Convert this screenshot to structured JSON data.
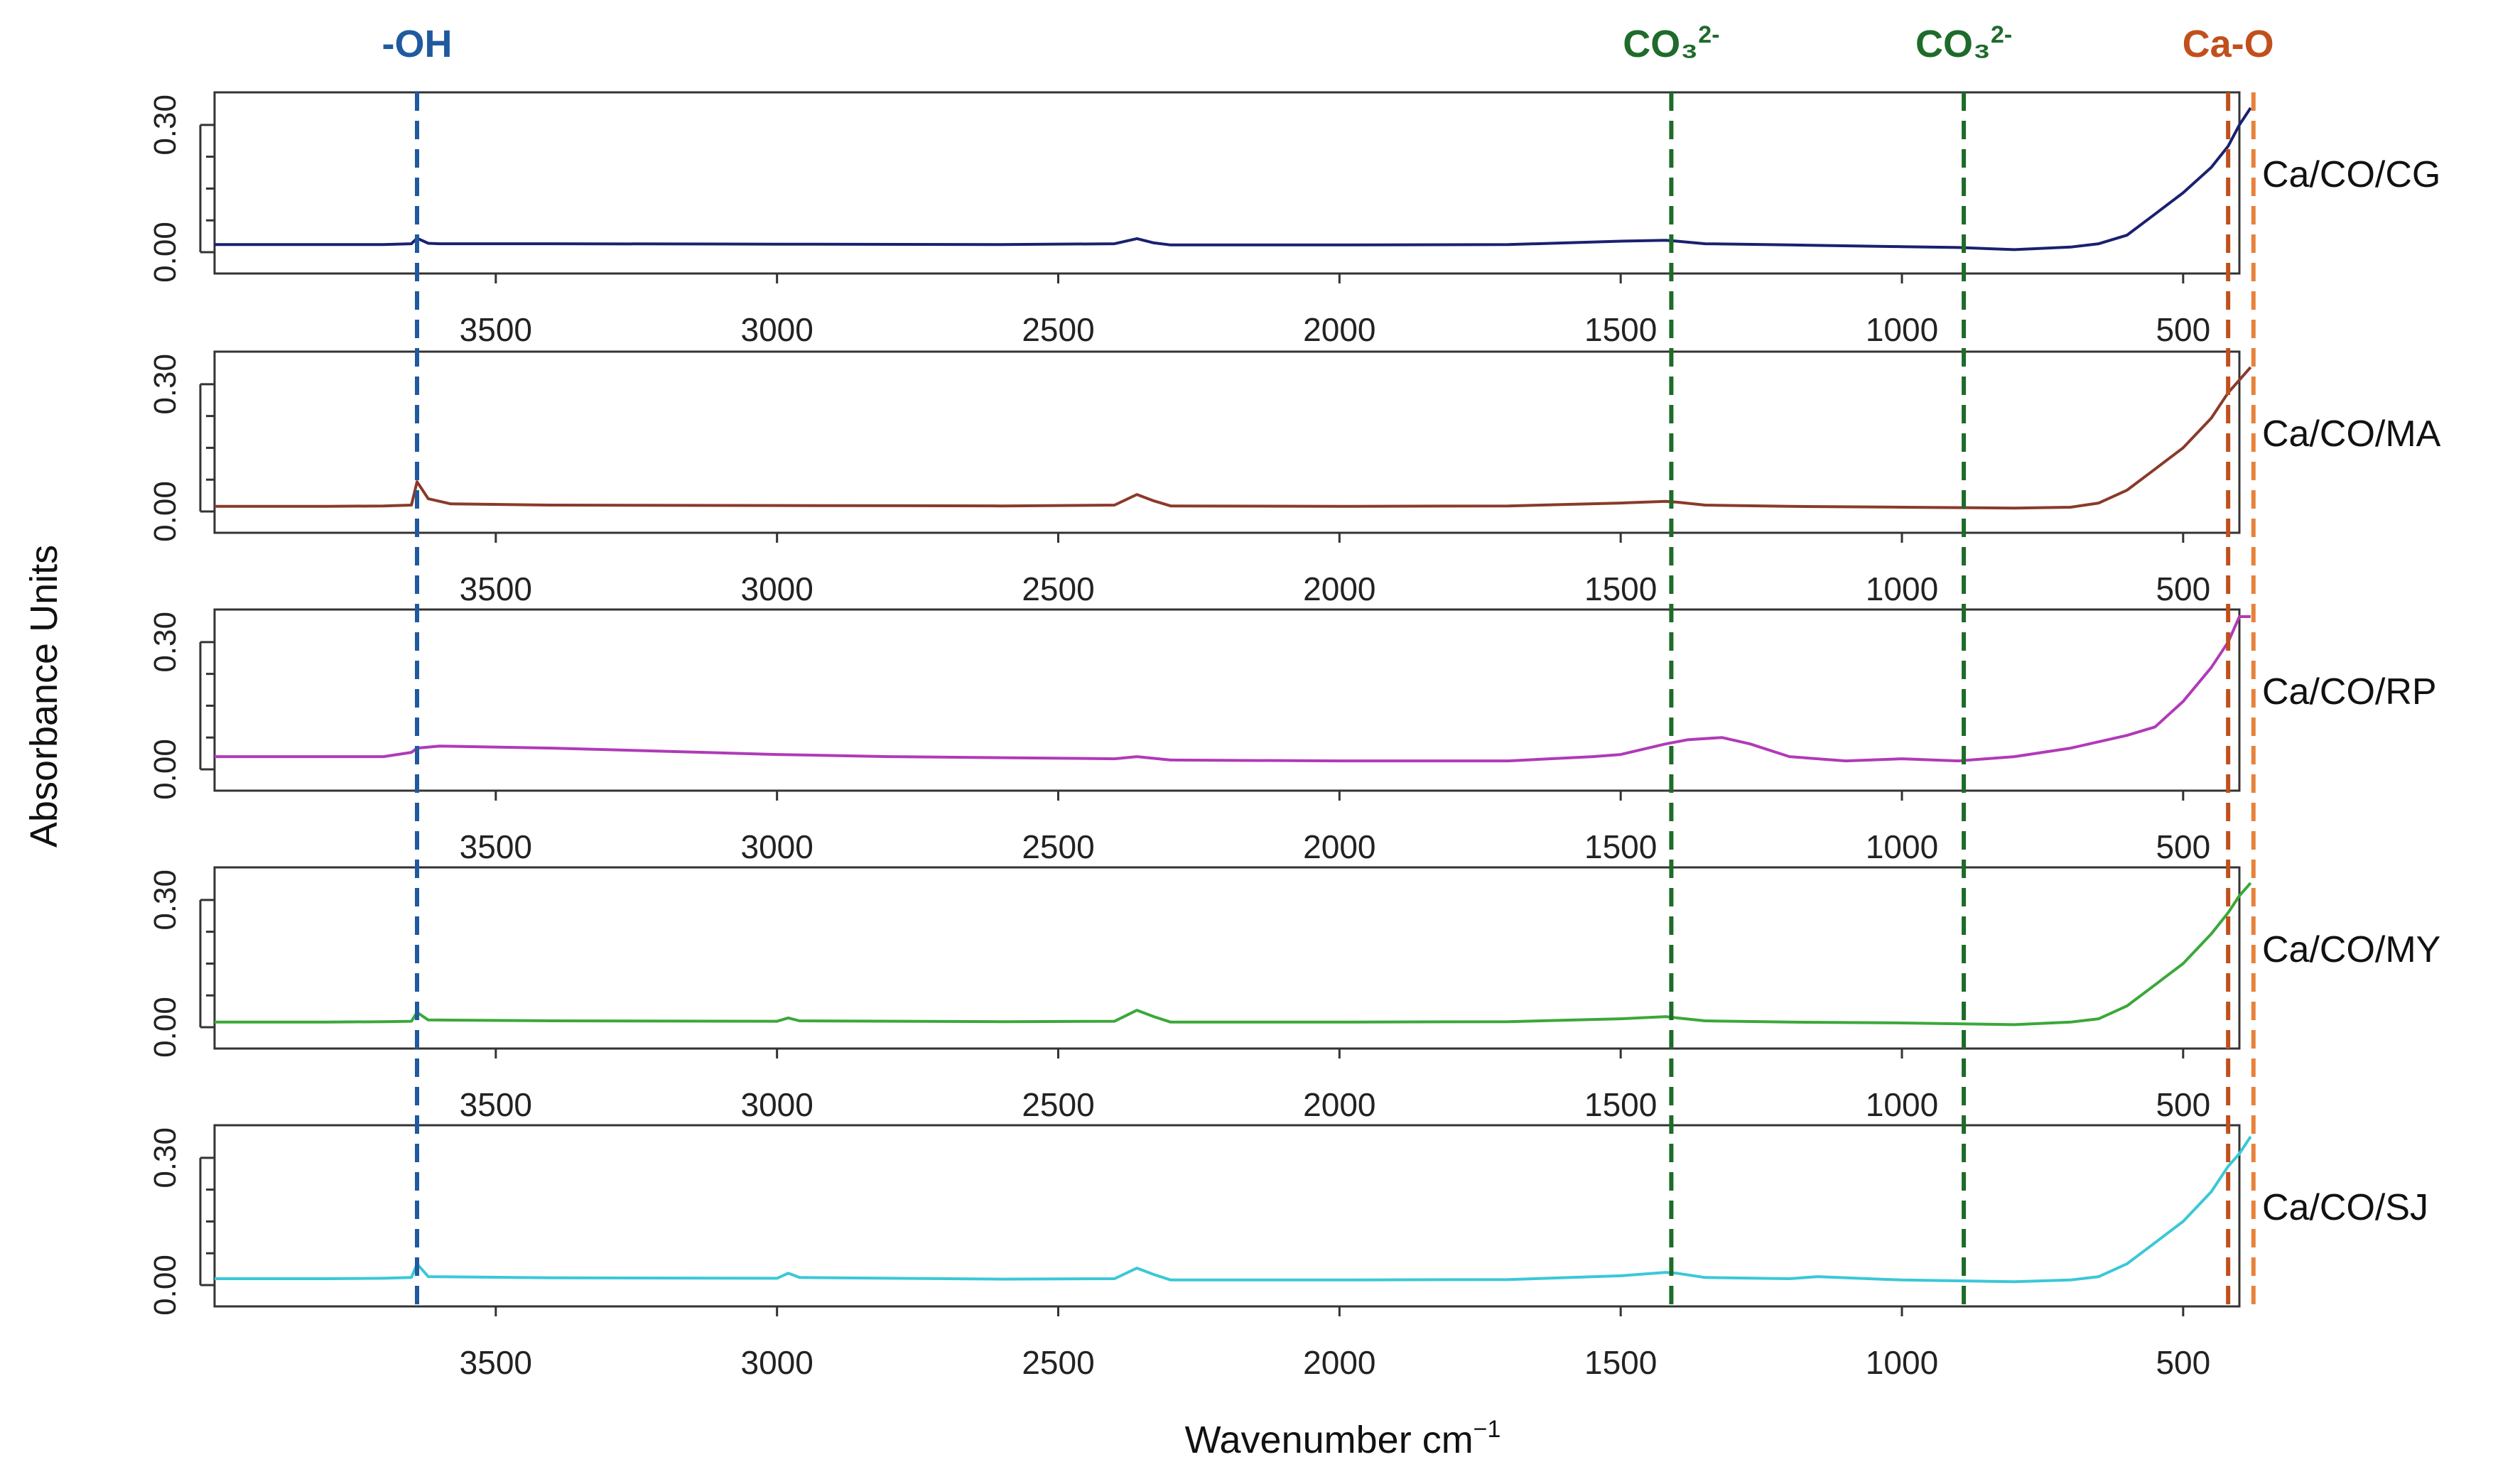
{
  "chart_data": {
    "type": "line",
    "layout": "stacked-panels",
    "xlabel": "Wavenumber cm",
    "xlabel_sup": "−1",
    "ylabel": "Absorbance Units",
    "xlim": [
      4000,
      400
    ],
    "x_reversed": true,
    "ylim": [
      0,
      0.36
    ],
    "xticks": [
      3500,
      3000,
      2500,
      2000,
      1500,
      1000,
      500
    ],
    "yticks": [
      0.0,
      0.3
    ],
    "ytick_labels": [
      "0.00",
      "0.30"
    ],
    "annotations": [
      {
        "label": "-OH",
        "sup": "",
        "x": 3640,
        "color": "#1f5aa0"
      },
      {
        "label": "CO₃",
        "sup": "2-",
        "x": 1410,
        "color": "#1e6b2a"
      },
      {
        "label": "CO₃",
        "sup": "2-",
        "x": 890,
        "color": "#1e6b2a"
      },
      {
        "label": "Ca-O",
        "sup": "",
        "x": 420,
        "color": "#c0501c"
      }
    ],
    "extra_vlines": [
      {
        "x": 375,
        "color": "#e8823a"
      }
    ],
    "series": [
      {
        "name": "Ca/CO/CG",
        "color": "#1a2070",
        "x": [
          4000,
          3800,
          3700,
          3650,
          3640,
          3620,
          3600,
          3400,
          3000,
          2600,
          2400,
          2360,
          2330,
          2300,
          2000,
          1700,
          1500,
          1420,
          1400,
          1350,
          1200,
          1000,
          900,
          800,
          700,
          650,
          600,
          550,
          500,
          450,
          420,
          400,
          380
        ],
        "y": [
          0.018,
          0.018,
          0.018,
          0.02,
          0.033,
          0.021,
          0.02,
          0.02,
          0.019,
          0.018,
          0.02,
          0.032,
          0.022,
          0.017,
          0.017,
          0.018,
          0.026,
          0.028,
          0.026,
          0.02,
          0.017,
          0.013,
          0.011,
          0.006,
          0.012,
          0.02,
          0.04,
          0.09,
          0.14,
          0.2,
          0.25,
          0.3,
          0.34
        ]
      },
      {
        "name": "Ca/CO/MA",
        "color": "#8a3a2a",
        "x": [
          4000,
          3800,
          3700,
          3650,
          3640,
          3620,
          3580,
          3400,
          3000,
          2600,
          2400,
          2360,
          2330,
          2300,
          2000,
          1700,
          1500,
          1420,
          1400,
          1350,
          1200,
          1000,
          800,
          700,
          650,
          600,
          550,
          500,
          450,
          420,
          400,
          380
        ],
        "y": [
          0.012,
          0.012,
          0.013,
          0.015,
          0.07,
          0.03,
          0.018,
          0.015,
          0.014,
          0.013,
          0.015,
          0.04,
          0.025,
          0.013,
          0.012,
          0.013,
          0.02,
          0.024,
          0.022,
          0.015,
          0.012,
          0.01,
          0.008,
          0.01,
          0.02,
          0.05,
          0.1,
          0.15,
          0.22,
          0.28,
          0.31,
          0.34
        ]
      },
      {
        "name": "Ca/CO/RP",
        "color": "#b03ab8",
        "x": [
          4000,
          3800,
          3700,
          3650,
          3640,
          3600,
          3400,
          3000,
          2800,
          2400,
          2360,
          2300,
          2000,
          1700,
          1550,
          1500,
          1420,
          1380,
          1320,
          1270,
          1200,
          1100,
          1000,
          900,
          800,
          700,
          600,
          550,
          500,
          450,
          420,
          400,
          380
        ],
        "y": [
          0.03,
          0.03,
          0.03,
          0.04,
          0.05,
          0.055,
          0.05,
          0.035,
          0.03,
          0.025,
          0.03,
          0.022,
          0.02,
          0.02,
          0.03,
          0.035,
          0.06,
          0.07,
          0.075,
          0.06,
          0.03,
          0.02,
          0.025,
          0.02,
          0.03,
          0.05,
          0.08,
          0.1,
          0.16,
          0.24,
          0.3,
          0.36,
          0.36
        ]
      },
      {
        "name": "Ca/CO/MY",
        "color": "#3aa83a",
        "x": [
          4000,
          3800,
          3700,
          3650,
          3640,
          3620,
          3400,
          3000,
          2980,
          2960,
          2600,
          2400,
          2360,
          2330,
          2300,
          2000,
          1700,
          1500,
          1420,
          1400,
          1350,
          1200,
          1000,
          800,
          700,
          650,
          600,
          550,
          500,
          450,
          420,
          400,
          380
        ],
        "y": [
          0.012,
          0.012,
          0.013,
          0.014,
          0.035,
          0.017,
          0.015,
          0.014,
          0.022,
          0.015,
          0.013,
          0.014,
          0.04,
          0.025,
          0.012,
          0.012,
          0.013,
          0.02,
          0.025,
          0.022,
          0.015,
          0.012,
          0.01,
          0.006,
          0.012,
          0.02,
          0.05,
          0.1,
          0.15,
          0.22,
          0.27,
          0.31,
          0.34
        ]
      },
      {
        "name": "Ca/CO/SJ",
        "color": "#3ac8d8",
        "x": [
          4000,
          3800,
          3700,
          3650,
          3640,
          3620,
          3400,
          3000,
          2980,
          2960,
          2600,
          2400,
          2360,
          2330,
          2300,
          2000,
          1700,
          1500,
          1420,
          1400,
          1350,
          1200,
          1150,
          1000,
          800,
          700,
          650,
          600,
          550,
          500,
          450,
          420,
          400,
          380
        ],
        "y": [
          0.015,
          0.015,
          0.016,
          0.018,
          0.05,
          0.02,
          0.017,
          0.016,
          0.028,
          0.018,
          0.014,
          0.015,
          0.04,
          0.025,
          0.012,
          0.012,
          0.013,
          0.022,
          0.03,
          0.028,
          0.018,
          0.015,
          0.02,
          0.012,
          0.008,
          0.012,
          0.02,
          0.05,
          0.1,
          0.15,
          0.22,
          0.28,
          0.31,
          0.35
        ]
      }
    ]
  }
}
